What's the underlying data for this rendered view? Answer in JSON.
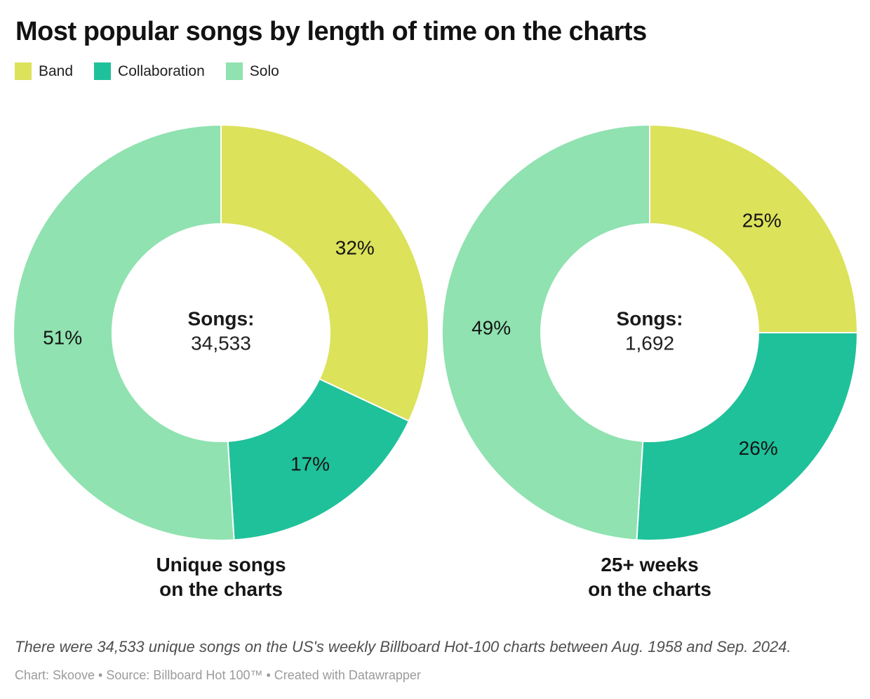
{
  "title": "Most popular songs by length of time on the charts",
  "legend": {
    "items": [
      {
        "label": "Band",
        "color": "#dce25a"
      },
      {
        "label": "Collaboration",
        "color": "#1fc19a"
      },
      {
        "label": "Solo",
        "color": "#90e2b0"
      }
    ],
    "position": "top"
  },
  "chart_data": [
    {
      "type": "pie",
      "subtype": "donut",
      "name": "unique-songs",
      "categories": [
        "Band",
        "Collaboration",
        "Solo"
      ],
      "values": [
        32,
        17,
        51
      ],
      "slice_labels": [
        "32%",
        "17%",
        "51%"
      ],
      "center_title": "Songs:",
      "center_value": "34,533",
      "caption_lines": [
        "Unique songs",
        "on the charts"
      ],
      "start_angle_deg": 0,
      "direction": "clockwise",
      "inner_radius_frac": 0.523
    },
    {
      "type": "pie",
      "subtype": "donut",
      "name": "25-plus-weeks",
      "categories": [
        "Band",
        "Collaboration",
        "Solo"
      ],
      "values": [
        25,
        26,
        49
      ],
      "slice_labels": [
        "25%",
        "26%",
        "49%"
      ],
      "center_title": "Songs:",
      "center_value": "1,692",
      "caption_lines": [
        "25+ weeks",
        "on the charts"
      ],
      "start_angle_deg": 0,
      "direction": "clockwise",
      "inner_radius_frac": 0.523
    }
  ],
  "footer": {
    "note": "There were 34,533 unique songs on the US's weekly Billboard Hot-100 charts between Aug. 1958 and Sep. 2024.",
    "credit": "Chart: Skoove • Source: Billboard Hot 100™ • Created with Datawrapper"
  },
  "colors": {
    "background": "#ffffff",
    "text": "#141414",
    "slice_border": "#ffffff",
    "note_text": "#4f4f4f",
    "credit_text": "#9b9b9b"
  }
}
